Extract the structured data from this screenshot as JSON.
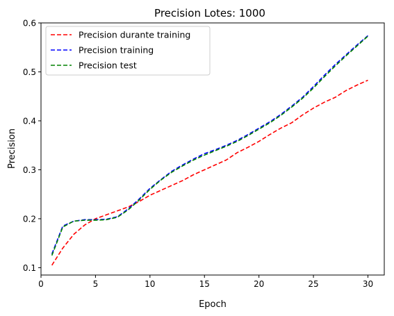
{
  "chart_data": {
    "type": "line",
    "title": "Precision  Lotes: 1000",
    "xlabel": "Epoch",
    "ylabel": "Precision",
    "xlim": [
      0,
      31.5
    ],
    "ylim": [
      0.085,
      0.6
    ],
    "xticks": [
      0,
      5,
      10,
      15,
      20,
      25,
      30
    ],
    "yticks": [
      0.1,
      0.2,
      0.3,
      0.4,
      0.5,
      0.6
    ],
    "grid": false,
    "legend_position": "top-left",
    "x": [
      1,
      2,
      3,
      4,
      5,
      6,
      7,
      8,
      9,
      10,
      11,
      12,
      13,
      14,
      15,
      16,
      17,
      18,
      19,
      20,
      21,
      22,
      23,
      24,
      25,
      26,
      27,
      28,
      29,
      30
    ],
    "series": [
      {
        "name": "Precision durante training",
        "color": "#ff0000",
        "line_style": "dashed",
        "values": [
          0.105,
          0.14,
          0.168,
          0.187,
          0.2,
          0.208,
          0.216,
          0.224,
          0.235,
          0.248,
          0.258,
          0.268,
          0.278,
          0.29,
          0.3,
          0.31,
          0.32,
          0.335,
          0.346,
          0.358,
          0.372,
          0.385,
          0.396,
          0.412,
          0.426,
          0.438,
          0.448,
          0.462,
          0.473,
          0.483
        ]
      },
      {
        "name": "Precision training",
        "color": "#0000ff",
        "line_style": "dashed",
        "values": [
          0.128,
          0.185,
          0.195,
          0.198,
          0.198,
          0.199,
          0.204,
          0.22,
          0.24,
          0.262,
          0.28,
          0.297,
          0.31,
          0.322,
          0.333,
          0.341,
          0.35,
          0.36,
          0.372,
          0.385,
          0.398,
          0.413,
          0.43,
          0.448,
          0.47,
          0.493,
          0.515,
          0.535,
          0.555,
          0.574
        ]
      },
      {
        "name": "Precision test",
        "color": "#008000",
        "line_style": "dashed",
        "values": [
          0.125,
          0.183,
          0.195,
          0.197,
          0.197,
          0.198,
          0.203,
          0.218,
          0.238,
          0.26,
          0.279,
          0.295,
          0.308,
          0.32,
          0.33,
          0.339,
          0.348,
          0.358,
          0.37,
          0.383,
          0.396,
          0.411,
          0.428,
          0.446,
          0.467,
          0.49,
          0.512,
          0.533,
          0.553,
          0.573
        ]
      }
    ]
  }
}
